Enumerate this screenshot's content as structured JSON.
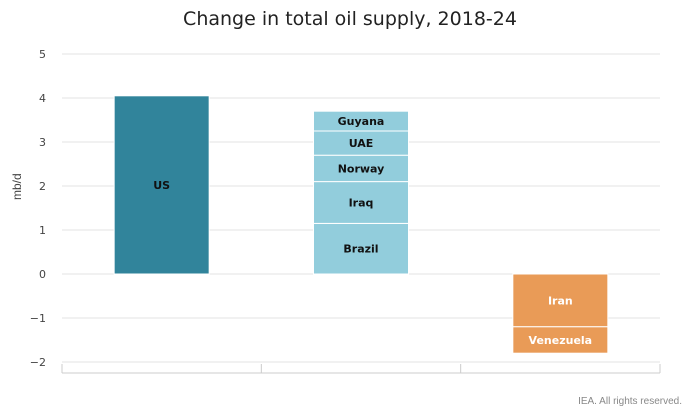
{
  "chart_data": {
    "type": "bar",
    "stacked": true,
    "title": "Change in total oil supply, 2018-24",
    "ylabel": "mb/d",
    "xlabel": "",
    "ylim": [
      -2,
      5
    ],
    "yticks": [
      "5",
      "4",
      "3",
      "2",
      "1",
      "0",
      "−1",
      "−2"
    ],
    "grid": true,
    "colors": {
      "us": "#31849b",
      "others": "#92cddc",
      "decline": "#e99b57"
    },
    "stacks": [
      {
        "segments": [
          {
            "label": "US",
            "value": 4.05,
            "color": "#31849b"
          }
        ]
      },
      {
        "segments": [
          {
            "label": "Brazil",
            "value": 1.15,
            "color": "#92cddc"
          },
          {
            "label": "Iraq",
            "value": 0.95,
            "color": "#92cddc"
          },
          {
            "label": "Norway",
            "value": 0.6,
            "color": "#92cddc"
          },
          {
            "label": "UAE",
            "value": 0.55,
            "color": "#92cddc"
          },
          {
            "label": "Guyana",
            "value": 0.45,
            "color": "#92cddc"
          }
        ]
      },
      {
        "segments": [
          {
            "label": "Iran",
            "value": -1.2,
            "color": "#e99b57"
          },
          {
            "label": "Venezuela",
            "value": -0.6,
            "color": "#e99b57"
          }
        ]
      }
    ]
  },
  "footer": "IEA. All rights reserved."
}
